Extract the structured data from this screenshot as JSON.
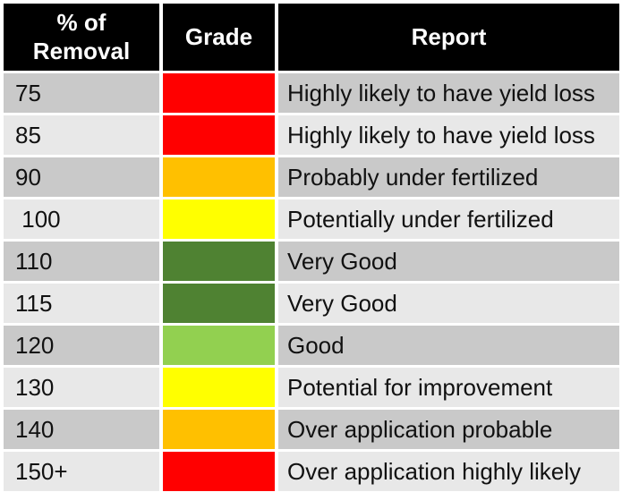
{
  "colors": {
    "header_bg": "#000000",
    "header_text": "#ffffff",
    "row_dark_gray": "#c9c9c9",
    "row_light_gray": "#e8e8e8",
    "grade_red": "#ff0000",
    "grade_orange": "#ffc000",
    "grade_yellow": "#ffff00",
    "grade_dark_green": "#4f8232",
    "grade_light_green": "#92d050"
  },
  "chart_data": {
    "type": "table",
    "title": "",
    "columns": {
      "percent": "% of\nRemoval",
      "grade": "Grade",
      "report": "Report"
    },
    "rows": [
      {
        "percent": "75",
        "grade_color": "#ff0000",
        "grade_name": "red",
        "report": "Highly likely to have yield loss"
      },
      {
        "percent": "85",
        "grade_color": "#ff0000",
        "grade_name": "red",
        "report": "Highly likely to have yield loss"
      },
      {
        "percent": "90",
        "grade_color": "#ffc000",
        "grade_name": "orange",
        "report": "Probably under fertilized"
      },
      {
        "percent": " 100",
        "grade_color": "#ffff00",
        "grade_name": "yellow",
        "report": "Potentially under fertilized"
      },
      {
        "percent": "110",
        "grade_color": "#4f8232",
        "grade_name": "dark-green",
        "report": "Very Good"
      },
      {
        "percent": "115",
        "grade_color": "#4f8232",
        "grade_name": "dark-green",
        "report": "Very Good"
      },
      {
        "percent": "120",
        "grade_color": "#92d050",
        "grade_name": "light-green",
        "report": "Good"
      },
      {
        "percent": "130",
        "grade_color": "#ffff00",
        "grade_name": "yellow",
        "report": "Potential for improvement"
      },
      {
        "percent": "140",
        "grade_color": "#ffc000",
        "grade_name": "orange",
        "report": "Over application probable"
      },
      {
        "percent": "150+",
        "grade_color": "#ff0000",
        "grade_name": "red",
        "report": "Over application highly likely"
      }
    ]
  }
}
